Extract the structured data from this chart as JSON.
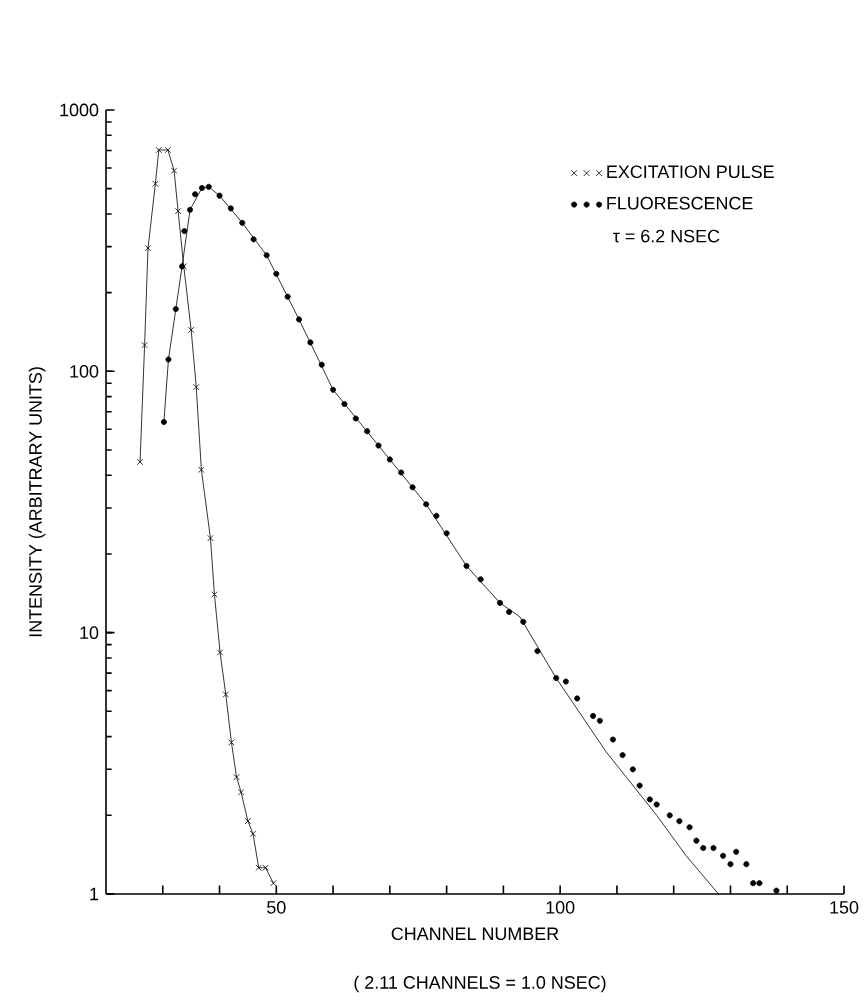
{
  "chart_data": {
    "type": "line",
    "xlabel": "CHANNEL NUMBER",
    "ylabel": "INTENSITY (ARBITRARY UNITS)",
    "annotations": [
      "τ = 6.2 NSEC",
      "( 2.11 CHANNELS = 1.0 NSEC)"
    ],
    "log": "y",
    "legend": "top right",
    "xlim": [
      20,
      150
    ],
    "ylim": [
      1,
      1000
    ],
    "xticks": [
      {
        "value": 30,
        "label": null
      },
      {
        "value": 40,
        "label": null
      },
      50,
      {
        "value": 60,
        "label": null
      },
      {
        "value": 70,
        "label": null
      },
      {
        "value": 80,
        "label": null
      },
      {
        "value": 90,
        "label": null
      },
      100,
      {
        "value": 110,
        "label": null
      },
      {
        "value": 120,
        "label": null
      },
      {
        "value": 130,
        "label": null
      },
      {
        "value": 140,
        "label": null
      },
      150
    ],
    "yticks": [
      1,
      10,
      100,
      1000
    ],
    "series": [
      {
        "name": "EXCITATION PULSE",
        "type": "line",
        "marker": "cross",
        "color": "#000000",
        "x": [
          26.0,
          26.8,
          27.4,
          28.7,
          29.3,
          30.9,
          32.0,
          32.7,
          33.7,
          35.0,
          35.9,
          36.8,
          38.4,
          39.1,
          40.1,
          41.1,
          42.1,
          43.0,
          43.8,
          45.0,
          45.9,
          46.9,
          48.1,
          49.5
        ],
        "values": [
          45,
          126,
          296,
          522,
          703,
          703,
          586,
          410,
          252,
          144,
          87,
          42,
          23,
          14,
          8.4,
          5.8,
          3.8,
          2.8,
          2.45,
          1.9,
          1.7,
          1.26,
          1.26,
          1.1
        ]
      },
      {
        "name": "FLUORESCENCE",
        "type": "scatter",
        "marker": "circle",
        "color": "#000000",
        "x": [
          30.2,
          31.0,
          32.3,
          33.4,
          33.8,
          34.8,
          35.7,
          36.9,
          38.1,
          40,
          42,
          44,
          46,
          48.3,
          50,
          52,
          54,
          56,
          58,
          60,
          62,
          64,
          66,
          68,
          70,
          72,
          74,
          76.4,
          78.2,
          80,
          83.5,
          86,
          89.4,
          91,
          93.5,
          96,
          99.3,
          101,
          103,
          105.8,
          107,
          109.3,
          111,
          112.8,
          114,
          115.8,
          117,
          119.3,
          121,
          122.8,
          124,
          125.2,
          127,
          128.7,
          130,
          131,
          132.8,
          134,
          135.1,
          138.1
        ],
        "values": [
          64,
          111,
          173,
          252,
          344,
          415,
          476,
          503,
          508,
          470,
          420,
          370,
          320,
          278,
          236,
          193,
          158,
          129,
          106,
          85,
          75,
          66,
          59,
          52,
          46,
          41,
          36,
          31,
          28,
          24,
          18,
          16,
          13,
          12,
          11,
          8.5,
          6.7,
          6.5,
          5.6,
          4.8,
          4.6,
          3.9,
          3.4,
          3.0,
          2.6,
          2.3,
          2.2,
          2.0,
          1.9,
          1.8,
          1.6,
          1.5,
          1.5,
          1.4,
          1.3,
          1.45,
          1.3,
          1.1,
          1.1,
          1.03
        ]
      },
      {
        "type": "line",
        "marker": "none",
        "color": "#000000",
        "x": [
          30.2,
          31,
          32.3,
          33.4,
          34.8,
          36.9,
          38.1,
          40,
          44,
          48.3,
          54,
          60,
          68,
          76.4,
          83.5,
          89.4,
          92.9,
          99.3,
          108.1,
          117,
          122.2,
          127.9
        ],
        "values": [
          64,
          111,
          173,
          252,
          415,
          503,
          508,
          470,
          370,
          278,
          158,
          85,
          52,
          31,
          18,
          13,
          11.5,
          6.7,
          3.5,
          2.0,
          1.4,
          1.0
        ]
      }
    ]
  }
}
